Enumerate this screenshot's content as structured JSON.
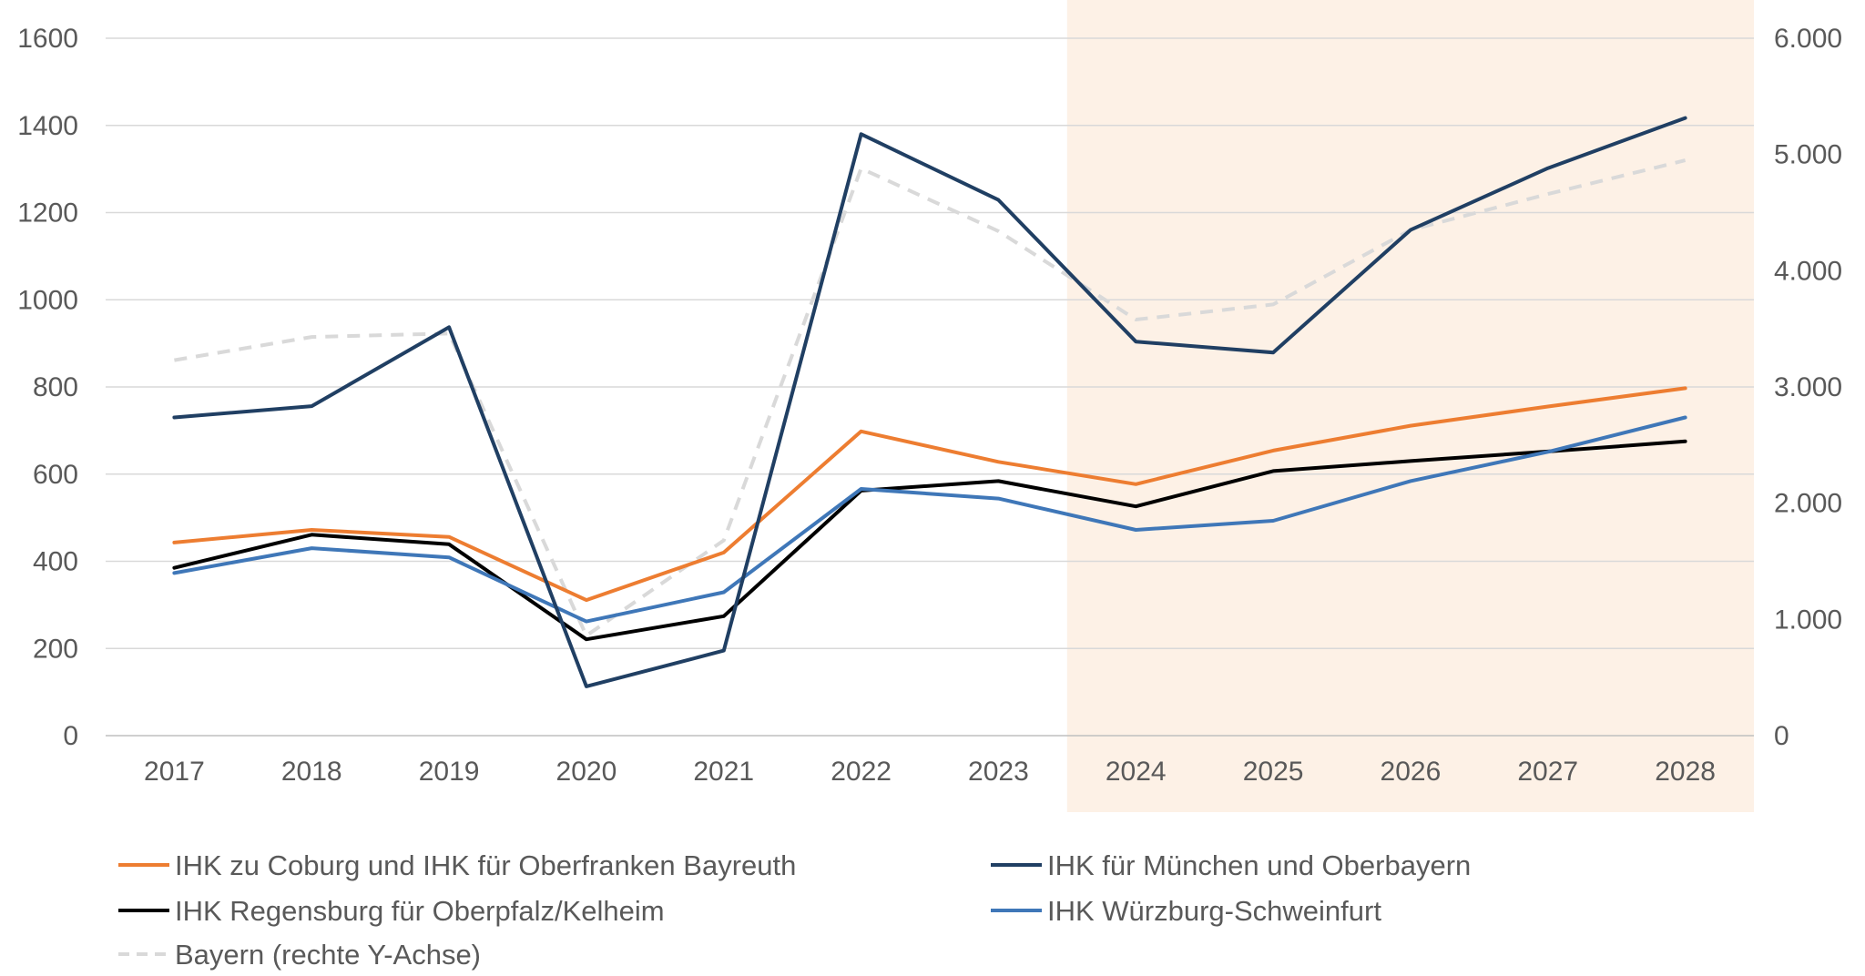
{
  "chart_data": {
    "type": "line",
    "title": "",
    "xlabel": "",
    "ylabel": "",
    "categories": [
      "2017",
      "2018",
      "2019",
      "2020",
      "2021",
      "2022",
      "2023",
      "2024",
      "2025",
      "2026",
      "2027",
      "2028"
    ],
    "ylim": [
      0,
      1600
    ],
    "y_ticks": [
      "0",
      "200",
      "400",
      "600",
      "800",
      "1000",
      "1200",
      "1400",
      "1600"
    ],
    "y2lim": [
      0,
      6000
    ],
    "y2_ticks": [
      "0",
      "1.000",
      "2.000",
      "3.000",
      "4.000",
      "5.000",
      "6.000"
    ],
    "grid": true,
    "highlight_range": [
      "2024",
      "2028"
    ],
    "highlight_color": "#fdf1e6",
    "legend_position": "bottom",
    "series": [
      {
        "name": "IHK zu Coburg und IHK für Oberfranken Bayreuth",
        "axis": "left",
        "color": "#ed7d31",
        "dash": false,
        "values": [
          443,
          472,
          456,
          311,
          420,
          698,
          628,
          577,
          654,
          711,
          755,
          797
        ]
      },
      {
        "name": "IHK für München und Oberbayern",
        "axis": "left",
        "color": "#203f63",
        "dash": false,
        "values": [
          730,
          756,
          937,
          113,
          195,
          1380,
          1229,
          904,
          879,
          1160,
          1302,
          1417
        ]
      },
      {
        "name": "IHK Regensburg für Oberpfalz/Kelheim",
        "axis": "left",
        "color": "#000000",
        "dash": false,
        "values": [
          385,
          461,
          439,
          221,
          274,
          562,
          584,
          526,
          607,
          630,
          652,
          675
        ]
      },
      {
        "name": "IHK Würzburg-Schweinfurt",
        "axis": "left",
        "color": "#3f77b8",
        "dash": false,
        "values": [
          373,
          430,
          409,
          262,
          329,
          566,
          544,
          472,
          493,
          584,
          651,
          730
        ]
      },
      {
        "name": "Bayern (rechte Y-Achse)",
        "axis": "right",
        "color": "#d9d9d9",
        "dash": true,
        "values": [
          3230,
          3430,
          3460,
          860,
          1680,
          4880,
          4340,
          3580,
          3710,
          4350,
          4660,
          4950
        ]
      }
    ]
  }
}
